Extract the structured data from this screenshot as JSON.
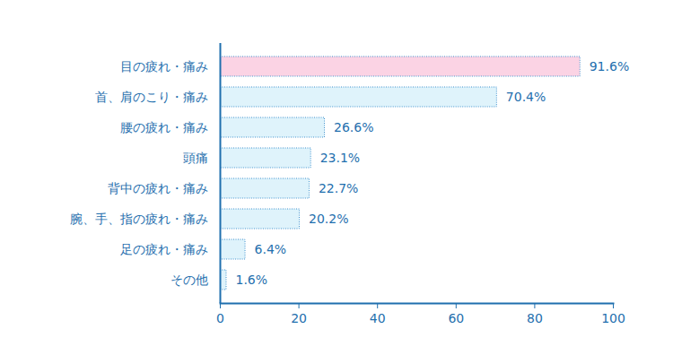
{
  "chart_data": {
    "type": "bar",
    "orientation": "horizontal",
    "categories": [
      "目の疲れ・痛み",
      "首、肩のこり・痛み",
      "腰の疲れ・痛み",
      "頭痛",
      "背中の疲れ・痛み",
      "腕、手、指の疲れ・痛み",
      "足の疲れ・痛み",
      "その他"
    ],
    "values": [
      91.6,
      70.4,
      26.6,
      23.1,
      22.7,
      20.2,
      6.4,
      1.6
    ],
    "value_labels": [
      "91.6%",
      "70.4%",
      "26.6%",
      "23.1%",
      "22.7%",
      "20.2%",
      "6.4%",
      "1.6%"
    ],
    "colors": [
      "#fbd3e4",
      "#dff3fb",
      "#dff3fb",
      "#dff3fb",
      "#dff3fb",
      "#dff3fb",
      "#dff3fb",
      "#dff3fb"
    ],
    "data_labels": true,
    "grid": false,
    "xlim": [
      0,
      100
    ],
    "xticks": [
      0,
      20,
      40,
      60,
      80,
      100
    ]
  }
}
